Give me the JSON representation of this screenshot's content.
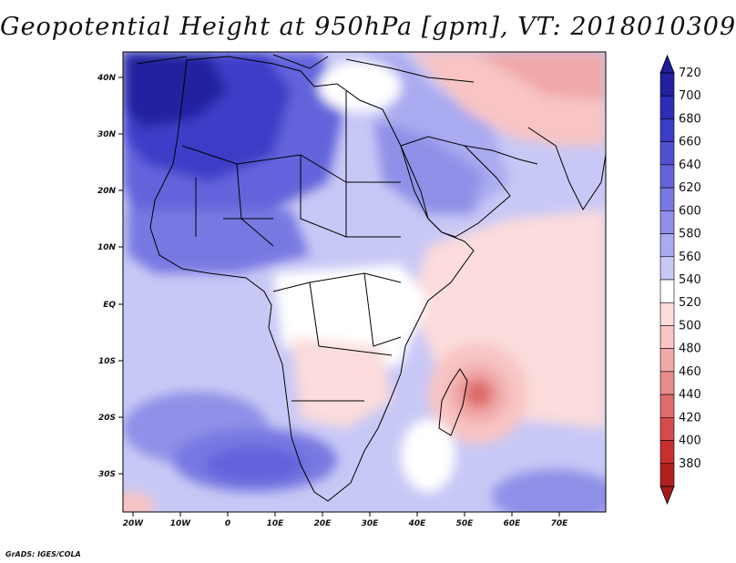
{
  "title": "Geopotential Height at 950hPa [gpm], VT: 2018010309",
  "credit": "GrADS: IGES/COLA",
  "map": {
    "x_ticks": [
      "20W",
      "10W",
      "0",
      "10E",
      "20E",
      "30E",
      "40E",
      "50E",
      "60E",
      "70E"
    ],
    "y_ticks": [
      "40N",
      "30N",
      "20N",
      "10N",
      "EQ",
      "10S",
      "20S",
      "30S"
    ]
  },
  "colorbar": {
    "levels": [
      "720",
      "700",
      "680",
      "660",
      "640",
      "620",
      "600",
      "580",
      "560",
      "540",
      "520",
      "500",
      "480",
      "460",
      "440",
      "420",
      "400",
      "380"
    ],
    "colors": [
      "#2020a0",
      "#2d2db8",
      "#3c3cc8",
      "#5050d2",
      "#6464dc",
      "#7878e2",
      "#9090e8",
      "#aaaaf0",
      "#c8c8f6",
      "#ffffff",
      "#fcdcdc",
      "#f8c4c4",
      "#f0a8a8",
      "#e88c8c",
      "#e06c6c",
      "#d64c4c",
      "#c83030",
      "#b02020"
    ],
    "top_color": "#1e1e96",
    "bottom_color": "#a51b1b"
  }
}
